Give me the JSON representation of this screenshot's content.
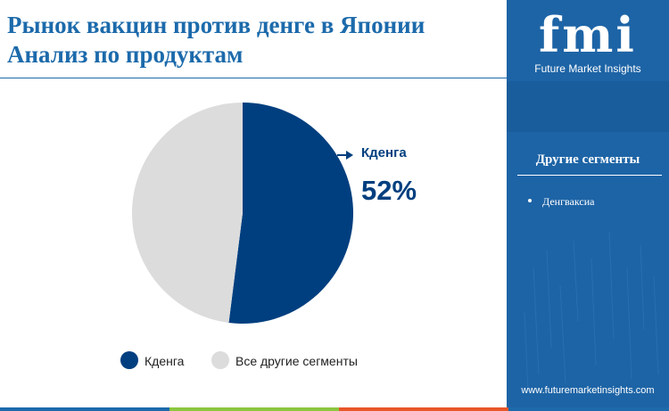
{
  "header": {
    "title_line1": "Рынок вакцин против денге в Японии",
    "title_line2": "Анализ по продуктам"
  },
  "chart_data": {
    "type": "pie",
    "slices": [
      {
        "label": "Кденга",
        "value": 52,
        "color": "#003f7f"
      },
      {
        "label": "Все другие сегменты",
        "value": 48,
        "color": "#dcdcdc"
      }
    ],
    "callout": {
      "label": "Кденга",
      "value_text": "52%"
    },
    "legend": {
      "placement": "bottom",
      "items": [
        "Кденга",
        "Все другие сегменты"
      ]
    }
  },
  "sidebar": {
    "logo_text": "fmi",
    "logo_subtitle": "Future Market Insights",
    "segments_title": "Другие сегменты",
    "segments": [
      "Денгваксиа"
    ],
    "website": "www.futuremarketinsights.com"
  },
  "colors": {
    "title": "#1c6aab",
    "sidebar_bg": "#1d64a6",
    "bottom_bar": [
      "#1c6aab",
      "#8cc63f",
      "#e8562a",
      "#1c6aab"
    ]
  }
}
